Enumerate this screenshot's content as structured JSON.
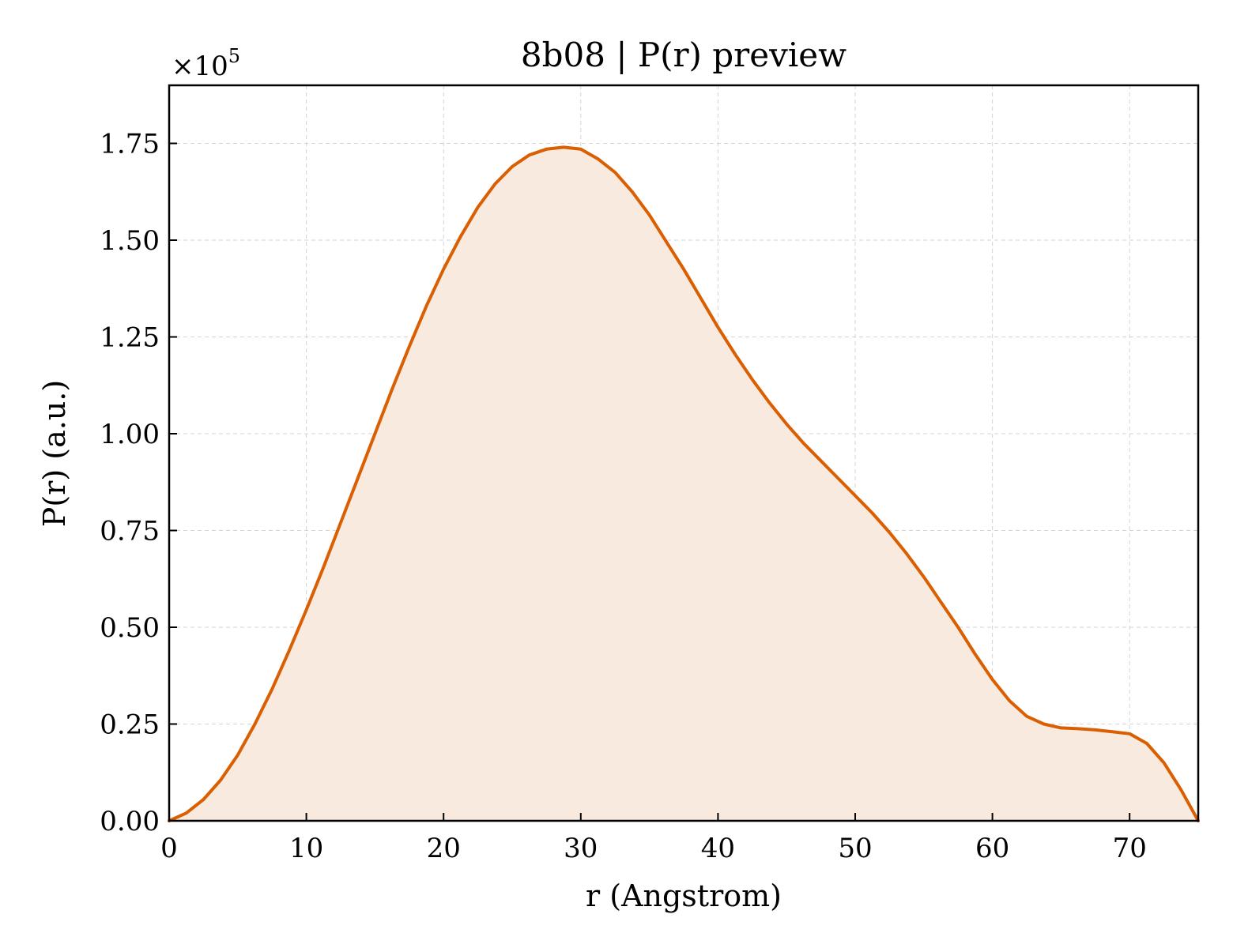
{
  "chart_data": {
    "type": "area",
    "title": "8b08 | P(r) preview",
    "xlabel": "r (Angstrom)",
    "ylabel": "P(r) (a.u.)",
    "y_multiplier_label": "×10",
    "y_multiplier_exponent": "5",
    "xlim": [
      0,
      75
    ],
    "ylim": [
      0,
      1.9
    ],
    "x_ticks": [
      0,
      10,
      20,
      30,
      40,
      50,
      60,
      70
    ],
    "x_tick_labels": [
      "0",
      "10",
      "20",
      "30",
      "40",
      "50",
      "60",
      "70"
    ],
    "y_ticks": [
      0,
      0.25,
      0.5,
      0.75,
      1.0,
      1.25,
      1.5,
      1.75
    ],
    "y_tick_labels": [
      "0.00",
      "0.25",
      "0.50",
      "0.75",
      "1.00",
      "1.25",
      "1.50",
      "1.75"
    ],
    "grid": true,
    "line_color": "#d95f02",
    "fill_color": "#f8eadf",
    "series": [
      {
        "x": [
          0,
          1.25,
          2.5,
          3.75,
          5,
          6.25,
          7.5,
          8.75,
          10,
          11.25,
          12.5,
          13.75,
          15,
          16.25,
          17.5,
          18.75,
          20,
          21.25,
          22.5,
          23.75,
          25,
          26.25,
          27.5,
          28.75,
          30,
          31.25,
          32.5,
          33.75,
          35,
          36.25,
          37.5,
          38.75,
          40,
          41.25,
          42.5,
          43.75,
          45,
          46.25,
          47.5,
          48.75,
          50,
          51.25,
          52.5,
          53.75,
          55,
          56.25,
          57.5,
          58.75,
          60,
          61.25,
          62.5,
          63.75,
          65,
          66.25,
          67.5,
          68.75,
          70,
          71.25,
          72.5,
          73.75,
          75
        ],
        "values": [
          0,
          0.02,
          0.055,
          0.105,
          0.17,
          0.25,
          0.34,
          0.44,
          0.545,
          0.655,
          0.77,
          0.885,
          1.0,
          1.115,
          1.225,
          1.33,
          1.425,
          1.51,
          1.585,
          1.645,
          1.69,
          1.72,
          1.735,
          1.74,
          1.735,
          1.71,
          1.675,
          1.625,
          1.565,
          1.495,
          1.425,
          1.35,
          1.275,
          1.205,
          1.14,
          1.08,
          1.025,
          0.975,
          0.93,
          0.885,
          0.84,
          0.795,
          0.745,
          0.69,
          0.63,
          0.565,
          0.5,
          0.43,
          0.365,
          0.31,
          0.27,
          0.25,
          0.24,
          0.238,
          0.235,
          0.23,
          0.225,
          0.2,
          0.15,
          0.08,
          0
        ]
      }
    ]
  }
}
